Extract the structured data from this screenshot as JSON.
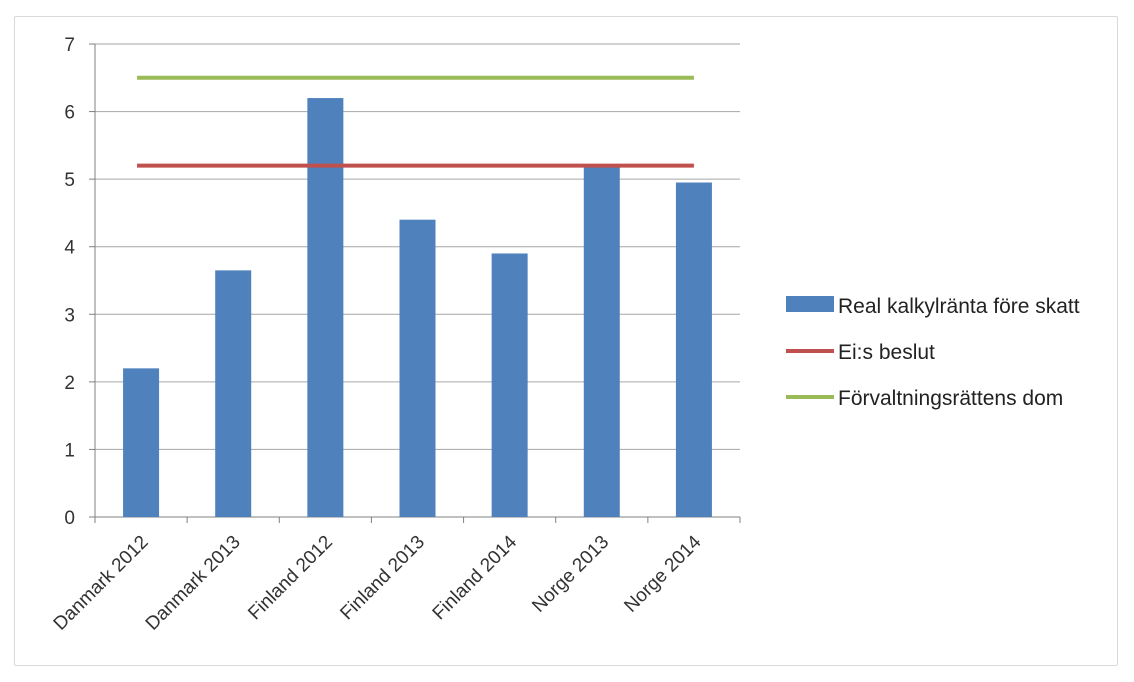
{
  "chart_data": {
    "type": "bar",
    "categories": [
      "Danmark 2012",
      "Danmark 2013",
      "Finland 2012",
      "Finland 2013",
      "Finland 2014",
      "Norge 2013",
      "Norge 2014"
    ],
    "series": [
      {
        "name": "Real kalkylränta före skatt",
        "type": "bar",
        "values": [
          2.2,
          3.65,
          6.2,
          4.4,
          3.9,
          5.2,
          4.95
        ],
        "color": "#4f81bd"
      },
      {
        "name": "Ei:s beslut",
        "type": "line",
        "values": [
          5.2,
          5.2,
          5.2,
          5.2,
          5.2,
          5.2,
          5.2
        ],
        "color": "#c0504d"
      },
      {
        "name": "Förvaltningsrättens dom",
        "type": "line",
        "values": [
          6.5,
          6.5,
          6.5,
          6.5,
          6.5,
          6.5,
          6.5
        ],
        "color": "#9bbb59"
      }
    ],
    "ylim": [
      0,
      7
    ],
    "yticks": [
      0,
      1,
      2,
      3,
      4,
      5,
      6,
      7
    ],
    "grid": true,
    "legend": "right"
  }
}
